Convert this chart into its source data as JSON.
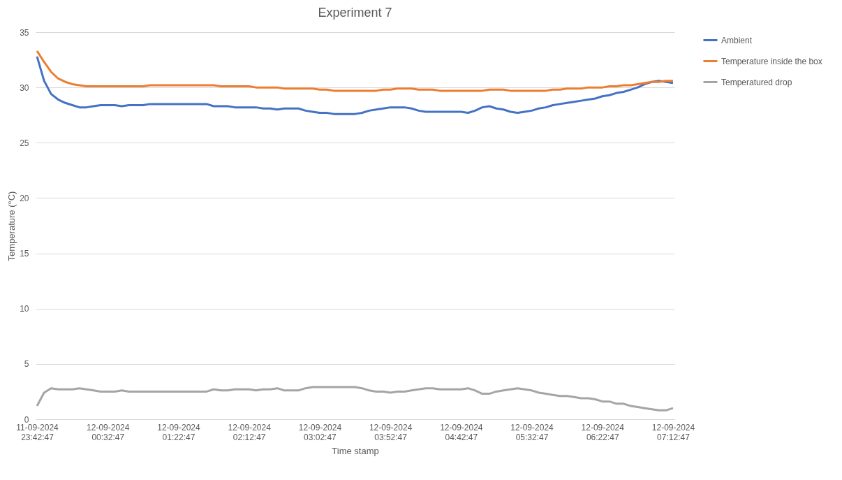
{
  "chart_data": {
    "type": "line",
    "title": "Experiment 7",
    "xlabel": "Time stamp",
    "ylabel": "Temperature (°C)",
    "categories": [
      "11-09-2024 23:42:47",
      null,
      null,
      null,
      null,
      null,
      null,
      null,
      null,
      null,
      "12-09-2024 00:32:47",
      null,
      null,
      null,
      null,
      null,
      null,
      null,
      null,
      null,
      "12-09-2024 01:22:47",
      null,
      null,
      null,
      null,
      null,
      null,
      null,
      null,
      null,
      "12-09-2024 02:12:47",
      null,
      null,
      null,
      null,
      null,
      null,
      null,
      null,
      null,
      "12-09-2024 03:02:47",
      null,
      null,
      null,
      null,
      null,
      null,
      null,
      null,
      null,
      "12-09-2024 03:52:47",
      null,
      null,
      null,
      null,
      null,
      null,
      null,
      null,
      null,
      "12-09-2024 04:42:47",
      null,
      null,
      null,
      null,
      null,
      null,
      null,
      null,
      null,
      "12-09-2024 05:32:47",
      null,
      null,
      null,
      null,
      null,
      null,
      null,
      null,
      null,
      "12-09-2024 06:22:47",
      null,
      null,
      null,
      null,
      null,
      null,
      null,
      null,
      null,
      "12-09-2024 07:12:47"
    ],
    "series": [
      {
        "name": "Ambient",
        "color": "#4472c4",
        "values": [
          32.8,
          30.6,
          29.4,
          28.9,
          28.6,
          28.4,
          28.2,
          28.2,
          28.3,
          28.4,
          28.4,
          28.4,
          28.3,
          28.4,
          28.4,
          28.4,
          28.5,
          28.5,
          28.5,
          28.5,
          28.5,
          28.5,
          28.5,
          28.5,
          28.5,
          28.3,
          28.3,
          28.3,
          28.2,
          28.2,
          28.2,
          28.2,
          28.1,
          28.1,
          28.0,
          28.1,
          28.1,
          28.1,
          27.9,
          27.8,
          27.7,
          27.7,
          27.6,
          27.6,
          27.6,
          27.6,
          27.7,
          27.9,
          28.0,
          28.1,
          28.2,
          28.2,
          28.2,
          28.1,
          27.9,
          27.8,
          27.8,
          27.8,
          27.8,
          27.8,
          27.8,
          27.7,
          27.9,
          28.2,
          28.3,
          28.1,
          28.0,
          27.8,
          27.7,
          27.8,
          27.9,
          28.1,
          28.2,
          28.4,
          28.5,
          28.6,
          28.7,
          28.8,
          28.9,
          29.0,
          29.2,
          29.3,
          29.5,
          29.6,
          29.8,
          30.0,
          30.3,
          30.5,
          30.6,
          30.5,
          30.4
        ]
      },
      {
        "name": "Temperature inside the box",
        "color": "#ed7d31",
        "values": [
          33.3,
          32.3,
          31.4,
          30.8,
          30.5,
          30.3,
          30.2,
          30.1,
          30.1,
          30.1,
          30.1,
          30.1,
          30.1,
          30.1,
          30.1,
          30.1,
          30.2,
          30.2,
          30.2,
          30.2,
          30.2,
          30.2,
          30.2,
          30.2,
          30.2,
          30.2,
          30.1,
          30.1,
          30.1,
          30.1,
          30.1,
          30.0,
          30.0,
          30.0,
          30.0,
          29.9,
          29.9,
          29.9,
          29.9,
          29.9,
          29.8,
          29.8,
          29.7,
          29.7,
          29.7,
          29.7,
          29.7,
          29.7,
          29.7,
          29.8,
          29.8,
          29.9,
          29.9,
          29.9,
          29.8,
          29.8,
          29.8,
          29.7,
          29.7,
          29.7,
          29.7,
          29.7,
          29.7,
          29.7,
          29.8,
          29.8,
          29.8,
          29.7,
          29.7,
          29.7,
          29.7,
          29.7,
          29.7,
          29.8,
          29.8,
          29.9,
          29.9,
          29.9,
          30.0,
          30.0,
          30.0,
          30.1,
          30.1,
          30.2,
          30.2,
          30.3,
          30.4,
          30.5,
          30.5,
          30.6,
          30.6
        ]
      },
      {
        "name": "Temperatured drop",
        "color": "#a5a5a5",
        "values": [
          1.2,
          2.4,
          2.8,
          2.7,
          2.7,
          2.7,
          2.8,
          2.7,
          2.6,
          2.5,
          2.5,
          2.5,
          2.6,
          2.5,
          2.5,
          2.5,
          2.5,
          2.5,
          2.5,
          2.5,
          2.5,
          2.5,
          2.5,
          2.5,
          2.5,
          2.7,
          2.6,
          2.6,
          2.7,
          2.7,
          2.7,
          2.6,
          2.7,
          2.7,
          2.8,
          2.6,
          2.6,
          2.6,
          2.8,
          2.9,
          2.9,
          2.9,
          2.9,
          2.9,
          2.9,
          2.9,
          2.8,
          2.6,
          2.5,
          2.5,
          2.4,
          2.5,
          2.5,
          2.6,
          2.7,
          2.8,
          2.8,
          2.7,
          2.7,
          2.7,
          2.7,
          2.8,
          2.6,
          2.3,
          2.3,
          2.5,
          2.6,
          2.7,
          2.8,
          2.7,
          2.6,
          2.4,
          2.3,
          2.2,
          2.1,
          2.1,
          2.0,
          1.9,
          1.9,
          1.8,
          1.6,
          1.6,
          1.4,
          1.4,
          1.2,
          1.1,
          1.0,
          0.9,
          0.8,
          0.8,
          1.0
        ]
      }
    ],
    "ylim": [
      0,
      35
    ],
    "yticks": [
      0,
      5,
      10,
      15,
      20,
      25,
      30,
      35
    ],
    "grid": "y",
    "legend": "right",
    "line_style": "solid"
  }
}
